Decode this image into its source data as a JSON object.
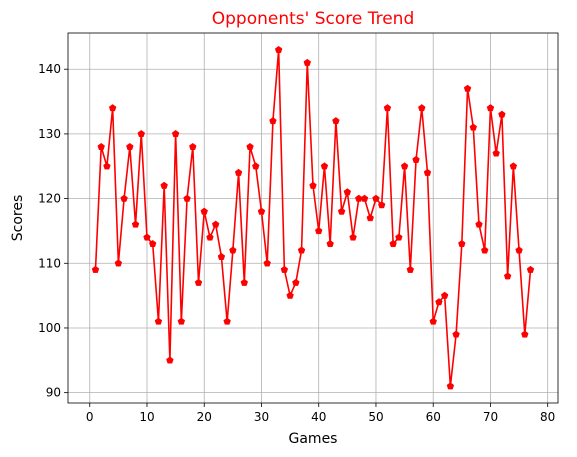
{
  "chart_data": {
    "type": "line",
    "title": "Opponents' Score Trend",
    "xlabel": "Games",
    "ylabel": "Scores",
    "xlim": [
      -3.8,
      81.8
    ],
    "ylim": [
      88.4,
      145.6
    ],
    "xticks": [
      0,
      10,
      20,
      30,
      40,
      50,
      60,
      70,
      80
    ],
    "yticks": [
      90,
      100,
      110,
      120,
      130,
      140
    ],
    "grid": true,
    "series": [
      {
        "color": "#ff0000",
        "marker": "pentagon",
        "x": [
          1,
          2,
          3,
          4,
          5,
          6,
          7,
          8,
          9,
          10,
          11,
          12,
          13,
          14,
          15,
          16,
          17,
          18,
          19,
          20,
          21,
          22,
          23,
          24,
          25,
          26,
          27,
          28,
          29,
          30,
          31,
          32,
          33,
          34,
          35,
          36,
          37,
          38,
          39,
          40,
          41,
          42,
          43,
          44,
          45,
          46,
          47,
          48,
          49,
          50,
          51,
          52,
          53,
          54,
          55,
          56,
          57,
          58,
          59,
          60,
          61,
          62,
          63,
          64,
          65,
          66,
          67,
          68,
          69,
          70,
          71,
          72,
          73,
          74,
          75,
          76,
          77
        ],
        "values": [
          109,
          128,
          125,
          134,
          110,
          120,
          128,
          116,
          130,
          114,
          113,
          101,
          122,
          95,
          130,
          101,
          120,
          128,
          107,
          118,
          114,
          116,
          111,
          101,
          112,
          124,
          107,
          128,
          125,
          118,
          110,
          132,
          143,
          109,
          105,
          107,
          112,
          141,
          122,
          115,
          125,
          113,
          132,
          118,
          121,
          114,
          120,
          120,
          117,
          120,
          119,
          134,
          113,
          114,
          125,
          109,
          126,
          134,
          124,
          101,
          104,
          105,
          91,
          99,
          113,
          137,
          131,
          116,
          112,
          134,
          127,
          133,
          108,
          125,
          112,
          99,
          109
        ]
      }
    ]
  }
}
